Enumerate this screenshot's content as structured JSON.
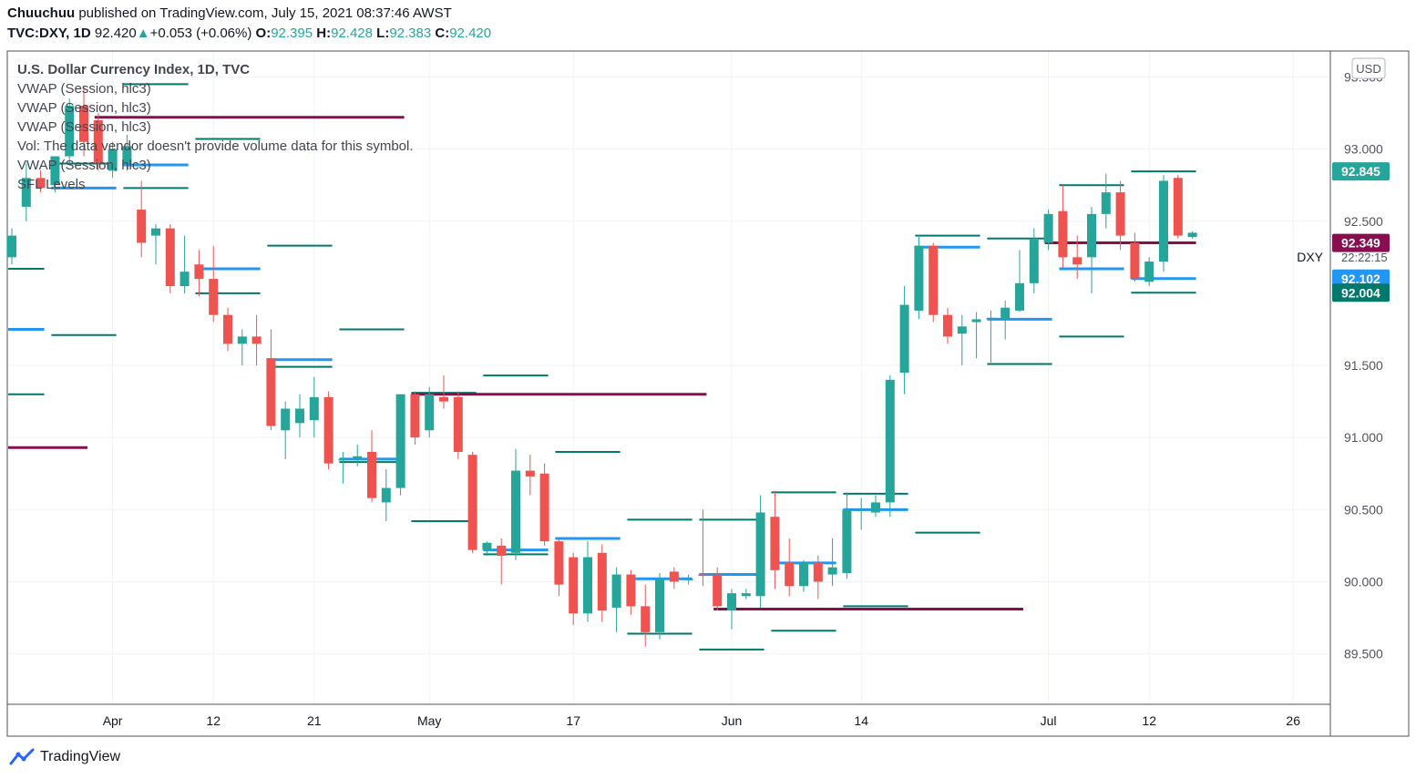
{
  "header": {
    "author": "Chuuchuu",
    "published_text": "published on TradingView.com, July 15, 2021 08:37:46 AWST",
    "symbol": "TVC:DXY, 1D",
    "last": "92.420",
    "change": "+0.053 (+0.06%)",
    "o_label": "O:",
    "o": "92.395",
    "h_label": "H:",
    "h": "92.428",
    "l_label": "L:",
    "l": "92.383",
    "c_label": "C:",
    "c": "92.420"
  },
  "legend": {
    "title": "U.S. Dollar Currency Index, 1D, TVC",
    "lines": [
      "VWAP (Session, hlc3)",
      "VWAP (Session, hlc3)",
      "VWAP (Session, hlc3)",
      "Vol: The data vendor doesn't provide volume data for this symbol.",
      "VWAP (Session, hlc3)",
      "SFL Levels"
    ]
  },
  "footer": {
    "brand": "TradingView"
  },
  "colors": {
    "up": "#26a69a",
    "down": "#ef5350",
    "blue": "#2196f3",
    "teal_line": "#00796b",
    "maroon": "#880e4f"
  },
  "chart_data": {
    "type": "candlestick",
    "currency": "USD",
    "symbol_label": "DXY",
    "countdown": "22:22:15",
    "ylim": [
      89.15,
      93.68
    ],
    "y_ticks": [
      "93.500",
      "93.000",
      "92.500",
      "91.500",
      "91.000",
      "90.500",
      "90.000",
      "89.500"
    ],
    "x_ticks": [
      {
        "label": "Apr",
        "day": 7
      },
      {
        "label": "12",
        "day": 14
      },
      {
        "label": "21",
        "day": 21
      },
      {
        "label": "May",
        "day": 29
      },
      {
        "label": "17",
        "day": 39
      },
      {
        "label": "Jun",
        "day": 50
      },
      {
        "label": "14",
        "day": 59
      },
      {
        "label": "Jul",
        "day": 72
      },
      {
        "label": "12",
        "day": 79
      },
      {
        "label": "26",
        "day": 89
      }
    ],
    "price_labels": [
      {
        "value": "92.845",
        "price": 92.845,
        "color": "#26a69a"
      },
      {
        "value": "92.349",
        "price": 92.349,
        "color": "#880e4f"
      },
      {
        "value": "92.102",
        "price": 92.102,
        "color": "#2196f3"
      },
      {
        "value": "92.004",
        "price": 92.004,
        "color": "#00796b"
      }
    ],
    "candles": [
      {
        "d": 0,
        "o": 92.25,
        "h": 92.45,
        "l": 92.2,
        "c": 92.4
      },
      {
        "d": 1,
        "o": 92.6,
        "h": 92.9,
        "l": 92.5,
        "c": 92.8
      },
      {
        "d": 2,
        "o": 92.8,
        "h": 92.85,
        "l": 92.7,
        "c": 92.73
      },
      {
        "d": 3,
        "o": 92.75,
        "h": 92.95,
        "l": 92.7,
        "c": 92.95
      },
      {
        "d": 4,
        "o": 92.95,
        "h": 93.35,
        "l": 92.9,
        "c": 93.3
      },
      {
        "d": 5,
        "o": 93.3,
        "h": 93.44,
        "l": 92.95,
        "c": 93.05
      },
      {
        "d": 6,
        "o": 93.2,
        "h": 93.25,
        "l": 92.85,
        "c": 92.9
      },
      {
        "d": 7,
        "o": 92.85,
        "h": 93.05,
        "l": 92.8,
        "c": 93.0
      },
      {
        "d": 8,
        "o": 92.9,
        "h": 93.1,
        "l": 92.85,
        "c": 93.02
      },
      {
        "d": 9,
        "o": 92.58,
        "h": 92.78,
        "l": 92.25,
        "c": 92.35
      },
      {
        "d": 10,
        "o": 92.4,
        "h": 92.48,
        "l": 92.2,
        "c": 92.45
      },
      {
        "d": 11,
        "o": 92.45,
        "h": 92.48,
        "l": 92.0,
        "c": 92.05
      },
      {
        "d": 12,
        "o": 92.05,
        "h": 92.4,
        "l": 92.0,
        "c": 92.15
      },
      {
        "d": 13,
        "o": 92.2,
        "h": 92.3,
        "l": 91.98,
        "c": 92.1
      },
      {
        "d": 14,
        "o": 92.1,
        "h": 92.33,
        "l": 91.8,
        "c": 91.85
      },
      {
        "d": 15,
        "o": 91.85,
        "h": 91.9,
        "l": 91.6,
        "c": 91.65
      },
      {
        "d": 16,
        "o": 91.65,
        "h": 91.75,
        "l": 91.5,
        "c": 91.7
      },
      {
        "d": 17,
        "o": 91.7,
        "h": 91.85,
        "l": 91.5,
        "c": 91.65
      },
      {
        "d": 18,
        "o": 91.55,
        "h": 91.75,
        "l": 91.05,
        "c": 91.08
      },
      {
        "d": 19,
        "o": 91.05,
        "h": 91.25,
        "l": 90.85,
        "c": 91.2
      },
      {
        "d": 20,
        "o": 91.1,
        "h": 91.3,
        "l": 91.0,
        "c": 91.2
      },
      {
        "d": 21,
        "o": 91.12,
        "h": 91.42,
        "l": 91.0,
        "c": 91.28
      },
      {
        "d": 22,
        "o": 91.28,
        "h": 91.32,
        "l": 90.78,
        "c": 90.82
      },
      {
        "d": 23,
        "o": 90.85,
        "h": 90.9,
        "l": 90.68,
        "c": 90.85
      },
      {
        "d": 24,
        "o": 90.85,
        "h": 90.95,
        "l": 90.8,
        "c": 90.87
      },
      {
        "d": 25,
        "o": 90.9,
        "h": 91.05,
        "l": 90.55,
        "c": 90.58
      },
      {
        "d": 26,
        "o": 90.55,
        "h": 90.78,
        "l": 90.42,
        "c": 90.65
      },
      {
        "d": 27,
        "o": 90.65,
        "h": 91.3,
        "l": 90.6,
        "c": 91.3
      },
      {
        "d": 28,
        "o": 91.3,
        "h": 91.32,
        "l": 90.95,
        "c": 91.0
      },
      {
        "d": 29,
        "o": 91.05,
        "h": 91.35,
        "l": 91.0,
        "c": 91.3
      },
      {
        "d": 30,
        "o": 91.28,
        "h": 91.43,
        "l": 91.2,
        "c": 91.25
      },
      {
        "d": 31,
        "o": 91.28,
        "h": 91.32,
        "l": 90.85,
        "c": 90.9
      },
      {
        "d": 32,
        "o": 90.88,
        "h": 90.9,
        "l": 90.2,
        "c": 90.22
      },
      {
        "d": 33,
        "o": 90.22,
        "h": 90.28,
        "l": 90.18,
        "c": 90.27
      },
      {
        "d": 34,
        "o": 90.25,
        "h": 90.3,
        "l": 89.98,
        "c": 90.18
      },
      {
        "d": 35,
        "o": 90.2,
        "h": 90.92,
        "l": 90.15,
        "c": 90.77
      },
      {
        "d": 36,
        "o": 90.77,
        "h": 90.88,
        "l": 90.6,
        "c": 90.73
      },
      {
        "d": 37,
        "o": 90.75,
        "h": 90.82,
        "l": 90.25,
        "c": 90.28
      },
      {
        "d": 38,
        "o": 90.28,
        "h": 90.3,
        "l": 89.9,
        "c": 89.98
      },
      {
        "d": 39,
        "o": 90.17,
        "h": 90.2,
        "l": 89.7,
        "c": 89.78
      },
      {
        "d": 40,
        "o": 89.78,
        "h": 90.28,
        "l": 89.72,
        "c": 90.17
      },
      {
        "d": 41,
        "o": 90.2,
        "h": 90.26,
        "l": 89.72,
        "c": 89.8
      },
      {
        "d": 42,
        "o": 89.82,
        "h": 90.1,
        "l": 89.65,
        "c": 90.05
      },
      {
        "d": 43,
        "o": 90.05,
        "h": 90.08,
        "l": 89.77,
        "c": 89.83
      },
      {
        "d": 44,
        "o": 89.83,
        "h": 89.98,
        "l": 89.55,
        "c": 89.65
      },
      {
        "d": 45,
        "o": 89.65,
        "h": 90.06,
        "l": 89.6,
        "c": 90.02
      },
      {
        "d": 46,
        "o": 90.07,
        "h": 90.1,
        "l": 89.95,
        "c": 90.0
      },
      {
        "d": 47,
        "o": 90.02,
        "h": 90.05,
        "l": 89.98,
        "c": 90.02
      },
      {
        "d": 48,
        "o": 90.05,
        "h": 90.5,
        "l": 89.97,
        "c": 90.04
      },
      {
        "d": 49,
        "o": 90.05,
        "h": 90.1,
        "l": 89.8,
        "c": 89.83
      },
      {
        "d": 50,
        "o": 89.8,
        "h": 89.95,
        "l": 89.67,
        "c": 89.92
      },
      {
        "d": 51,
        "o": 89.9,
        "h": 89.95,
        "l": 89.88,
        "c": 89.92
      },
      {
        "d": 52,
        "o": 89.9,
        "h": 90.6,
        "l": 89.82,
        "c": 90.48
      },
      {
        "d": 53,
        "o": 90.45,
        "h": 90.63,
        "l": 89.95,
        "c": 90.08
      },
      {
        "d": 54,
        "o": 90.13,
        "h": 90.3,
        "l": 89.9,
        "c": 89.97
      },
      {
        "d": 55,
        "o": 89.97,
        "h": 90.15,
        "l": 89.93,
        "c": 90.13
      },
      {
        "d": 56,
        "o": 90.13,
        "h": 90.18,
        "l": 89.88,
        "c": 90.0
      },
      {
        "d": 57,
        "o": 90.05,
        "h": 90.3,
        "l": 89.97,
        "c": 90.1
      },
      {
        "d": 58,
        "o": 90.06,
        "h": 90.62,
        "l": 90.02,
        "c": 90.5
      },
      {
        "d": 59,
        "o": 90.5,
        "h": 90.58,
        "l": 90.36,
        "c": 90.5
      },
      {
        "d": 60,
        "o": 90.48,
        "h": 90.6,
        "l": 90.45,
        "c": 90.55
      },
      {
        "d": 61,
        "o": 90.55,
        "h": 91.43,
        "l": 90.45,
        "c": 91.4
      },
      {
        "d": 62,
        "o": 91.45,
        "h": 92.05,
        "l": 91.3,
        "c": 91.92
      },
      {
        "d": 63,
        "o": 91.88,
        "h": 92.4,
        "l": 91.82,
        "c": 92.33
      },
      {
        "d": 64,
        "o": 92.33,
        "h": 92.35,
        "l": 91.8,
        "c": 91.85
      },
      {
        "d": 65,
        "o": 91.85,
        "h": 91.9,
        "l": 91.65,
        "c": 91.7
      },
      {
        "d": 66,
        "o": 91.72,
        "h": 91.85,
        "l": 91.5,
        "c": 91.77
      },
      {
        "d": 67,
        "o": 91.8,
        "h": 91.87,
        "l": 91.55,
        "c": 91.82
      },
      {
        "d": 68,
        "o": 91.83,
        "h": 91.88,
        "l": 91.52,
        "c": 91.83
      },
      {
        "d": 69,
        "o": 91.82,
        "h": 91.95,
        "l": 91.68,
        "c": 91.9
      },
      {
        "d": 70,
        "o": 91.88,
        "h": 92.3,
        "l": 91.87,
        "c": 92.07
      },
      {
        "d": 71,
        "o": 92.07,
        "h": 92.45,
        "l": 92.0,
        "c": 92.38
      },
      {
        "d": 72,
        "o": 92.35,
        "h": 92.58,
        "l": 92.3,
        "c": 92.55
      },
      {
        "d": 73,
        "o": 92.57,
        "h": 92.75,
        "l": 92.18,
        "c": 92.25
      },
      {
        "d": 74,
        "o": 92.25,
        "h": 92.4,
        "l": 92.1,
        "c": 92.2
      },
      {
        "d": 75,
        "o": 92.25,
        "h": 92.6,
        "l": 92.0,
        "c": 92.55
      },
      {
        "d": 76,
        "o": 92.55,
        "h": 92.83,
        "l": 92.45,
        "c": 92.7
      },
      {
        "d": 77,
        "o": 92.7,
        "h": 92.78,
        "l": 92.3,
        "c": 92.4
      },
      {
        "d": 78,
        "o": 92.35,
        "h": 92.42,
        "l": 92.08,
        "c": 92.1
      },
      {
        "d": 79,
        "o": 92.08,
        "h": 92.25,
        "l": 92.05,
        "c": 92.22
      },
      {
        "d": 80,
        "o": 92.22,
        "h": 92.82,
        "l": 92.15,
        "c": 92.78
      },
      {
        "d": 81,
        "o": 92.8,
        "h": 92.82,
        "l": 92.38,
        "c": 92.4
      },
      {
        "d": 82,
        "o": 92.39,
        "h": 92.43,
        "l": 92.38,
        "c": 92.42
      }
    ],
    "levels": [
      {
        "price": 93.45,
        "d1": 8,
        "d2": 12,
        "color": "#00796b",
        "w": 2
      },
      {
        "price": 93.22,
        "d1": 6,
        "d2": 27,
        "color": "#880e4f",
        "w": 3
      },
      {
        "price": 93.07,
        "d1": 13,
        "d2": 17,
        "color": "#00796b",
        "w": 2
      },
      {
        "price": 92.89,
        "d1": 8,
        "d2": 12,
        "color": "#2196f3",
        "w": 3
      },
      {
        "price": 92.9,
        "d1": 3,
        "d2": 7,
        "color": "#00796b",
        "w": 2
      },
      {
        "price": 92.73,
        "d1": 3,
        "d2": 7,
        "color": "#2196f3",
        "w": 3
      },
      {
        "price": 92.73,
        "d1": 8,
        "d2": 12,
        "color": "#00796b",
        "w": 2
      },
      {
        "price": 92.33,
        "d1": 18,
        "d2": 22,
        "color": "#00796b",
        "w": 2
      },
      {
        "price": 92.17,
        "d1": 13,
        "d2": 17,
        "color": "#2196f3",
        "w": 3
      },
      {
        "price": 92.17,
        "d1": 0,
        "d2": 2,
        "color": "#00796b",
        "w": 2
      },
      {
        "price": 92.0,
        "d1": 13,
        "d2": 17,
        "color": "#00796b",
        "w": 2
      },
      {
        "price": 91.75,
        "d1": 0,
        "d2": 2,
        "color": "#2196f3",
        "w": 3
      },
      {
        "price": 91.75,
        "d1": 23,
        "d2": 27,
        "color": "#00796b",
        "w": 2
      },
      {
        "price": 91.71,
        "d1": 3,
        "d2": 7,
        "color": "#00796b",
        "w": 2
      },
      {
        "price": 91.54,
        "d1": 18,
        "d2": 22,
        "color": "#2196f3",
        "w": 3
      },
      {
        "price": 91.49,
        "d1": 18,
        "d2": 22,
        "color": "#00796b",
        "w": 2
      },
      {
        "price": 91.43,
        "d1": 33,
        "d2": 37,
        "color": "#00796b",
        "w": 2
      },
      {
        "price": 91.31,
        "d1": 28,
        "d2": 32,
        "color": "#00796b",
        "w": 2
      },
      {
        "price": 91.3,
        "d1": 28,
        "d2": 48,
        "color": "#880e4f",
        "w": 3
      },
      {
        "price": 91.3,
        "d1": 0,
        "d2": 2,
        "color": "#00796b",
        "w": 2
      },
      {
        "price": 90.93,
        "d1": 0,
        "d2": 5,
        "color": "#880e4f",
        "w": 3
      },
      {
        "price": 90.9,
        "d1": 38,
        "d2": 42,
        "color": "#00796b",
        "w": 2
      },
      {
        "price": 90.85,
        "d1": 23,
        "d2": 27,
        "color": "#2196f3",
        "w": 3
      },
      {
        "price": 90.83,
        "d1": 23,
        "d2": 27,
        "color": "#00796b",
        "w": 2
      },
      {
        "price": 90.62,
        "d1": 53,
        "d2": 57,
        "color": "#00796b",
        "w": 2
      },
      {
        "price": 90.61,
        "d1": 58,
        "d2": 62,
        "color": "#00796b",
        "w": 2
      },
      {
        "price": 90.5,
        "d1": 58,
        "d2": 62,
        "color": "#2196f3",
        "w": 3
      },
      {
        "price": 90.43,
        "d1": 48,
        "d2": 52,
        "color": "#00796b",
        "w": 2
      },
      {
        "price": 90.43,
        "d1": 43,
        "d2": 47,
        "color": "#00796b",
        "w": 2
      },
      {
        "price": 90.42,
        "d1": 28,
        "d2": 32,
        "color": "#00796b",
        "w": 2
      },
      {
        "price": 90.34,
        "d1": 63,
        "d2": 67,
        "color": "#00796b",
        "w": 2
      },
      {
        "price": 90.3,
        "d1": 38,
        "d2": 42,
        "color": "#2196f3",
        "w": 3
      },
      {
        "price": 90.22,
        "d1": 33,
        "d2": 37,
        "color": "#2196f3",
        "w": 3
      },
      {
        "price": 90.19,
        "d1": 33,
        "d2": 37,
        "color": "#00796b",
        "w": 2
      },
      {
        "price": 90.13,
        "d1": 53,
        "d2": 57,
        "color": "#2196f3",
        "w": 3
      },
      {
        "price": 90.05,
        "d1": 48,
        "d2": 52,
        "color": "#2196f3",
        "w": 3
      },
      {
        "price": 90.02,
        "d1": 43,
        "d2": 47,
        "color": "#2196f3",
        "w": 3
      },
      {
        "price": 89.83,
        "d1": 58,
        "d2": 62,
        "color": "#00796b",
        "w": 2
      },
      {
        "price": 89.81,
        "d1": 49,
        "d2": 70,
        "color": "#880e4f",
        "w": 3
      },
      {
        "price": 89.66,
        "d1": 53,
        "d2": 57,
        "color": "#00796b",
        "w": 2
      },
      {
        "price": 89.64,
        "d1": 43,
        "d2": 47,
        "color": "#00796b",
        "w": 2
      },
      {
        "price": 89.53,
        "d1": 48,
        "d2": 52,
        "color": "#00796b",
        "w": 2
      },
      {
        "price": 92.4,
        "d1": 63,
        "d2": 67,
        "color": "#00796b",
        "w": 2
      },
      {
        "price": 92.32,
        "d1": 63,
        "d2": 67,
        "color": "#2196f3",
        "w": 3
      },
      {
        "price": 92.38,
        "d1": 68,
        "d2": 72,
        "color": "#00796b",
        "w": 2
      },
      {
        "price": 91.82,
        "d1": 68,
        "d2": 72,
        "color": "#2196f3",
        "w": 3
      },
      {
        "price": 91.51,
        "d1": 68,
        "d2": 72,
        "color": "#00796b",
        "w": 2
      },
      {
        "price": 92.75,
        "d1": 73,
        "d2": 77,
        "color": "#00796b",
        "w": 2
      },
      {
        "price": 92.17,
        "d1": 73,
        "d2": 77,
        "color": "#2196f3",
        "w": 3
      },
      {
        "price": 91.7,
        "d1": 73,
        "d2": 77,
        "color": "#00796b",
        "w": 2
      },
      {
        "price": 92.35,
        "d1": 72,
        "d2": 82,
        "color": "#880e4f",
        "w": 3
      },
      {
        "price": 92.845,
        "d1": 78,
        "d2": 82,
        "color": "#00796b",
        "w": 2
      },
      {
        "price": 92.102,
        "d1": 78,
        "d2": 82,
        "color": "#2196f3",
        "w": 3
      },
      {
        "price": 92.004,
        "d1": 78,
        "d2": 82,
        "color": "#00796b",
        "w": 2
      }
    ]
  }
}
